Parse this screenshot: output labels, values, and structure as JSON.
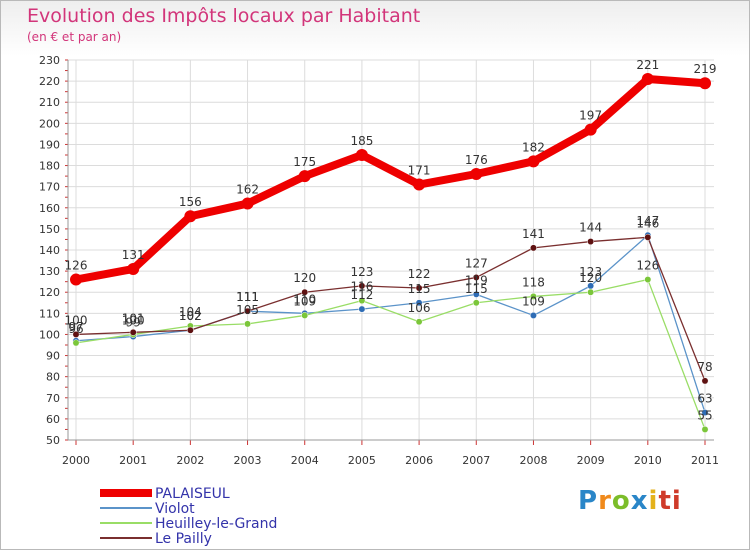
{
  "header": {
    "title": "Evolution des Impôts locaux par Habitant",
    "subtitle": "(en € et par an)"
  },
  "logo": {
    "text": "Proxiti",
    "letters": [
      "P",
      "r",
      "o",
      "x",
      "i",
      "ti"
    ]
  },
  "chart_data": {
    "type": "line",
    "title": "Evolution des Impôts locaux par Habitant",
    "subtitle": "(en € et par an)",
    "xlabel": "",
    "ylabel": "",
    "categories": [
      "2000",
      "2001",
      "2002",
      "2003",
      "2004",
      "2005",
      "2006",
      "2007",
      "2008",
      "2009",
      "2010",
      "2011"
    ],
    "ylim": [
      50,
      230
    ],
    "yticks": [
      50,
      60,
      70,
      80,
      90,
      100,
      110,
      120,
      130,
      140,
      150,
      160,
      170,
      180,
      190,
      200,
      210,
      220,
      230
    ],
    "grid": true,
    "legend_position": "bottom-left",
    "series": [
      {
        "name": "PALAISEUL",
        "color": "#ee0000",
        "style": "thick",
        "values": [
          126,
          131,
          156,
          162,
          175,
          185,
          171,
          176,
          182,
          197,
          221,
          219
        ],
        "labels": [
          "126",
          "131",
          "156",
          "162",
          "175",
          "185",
          "171",
          "176",
          "182",
          "197",
          "221",
          "219"
        ]
      },
      {
        "name": "Violot",
        "color": "#5b93c9",
        "marker": "#2e6cb5",
        "values": [
          97,
          99,
          102,
          111,
          110,
          112,
          115,
          119,
          109,
          123,
          147,
          63
        ],
        "labels": [
          "97",
          "99",
          "102",
          "111",
          "110",
          "112",
          "115",
          "119",
          "109",
          "123",
          "147",
          "63"
        ]
      },
      {
        "name": "Heuilley-le-Grand",
        "color": "#99dd66",
        "marker": "#7bc63a",
        "values": [
          96,
          100,
          104,
          105,
          109,
          116,
          106,
          115,
          118,
          120,
          126,
          55
        ],
        "labels": [
          "96",
          "100",
          "104",
          "105",
          "109",
          "116",
          "106",
          "115",
          "118",
          "120",
          "126",
          "55"
        ]
      },
      {
        "name": "Le Pailly",
        "color": "#7a2f2f",
        "marker": "#5e1111",
        "values": [
          100,
          101,
          102,
          111,
          120,
          123,
          122,
          127,
          141,
          144,
          146,
          78
        ],
        "labels": [
          "100",
          "101",
          "102",
          "111",
          "120",
          "123",
          "122",
          "127",
          "141",
          "144",
          "146",
          "78"
        ]
      }
    ]
  }
}
